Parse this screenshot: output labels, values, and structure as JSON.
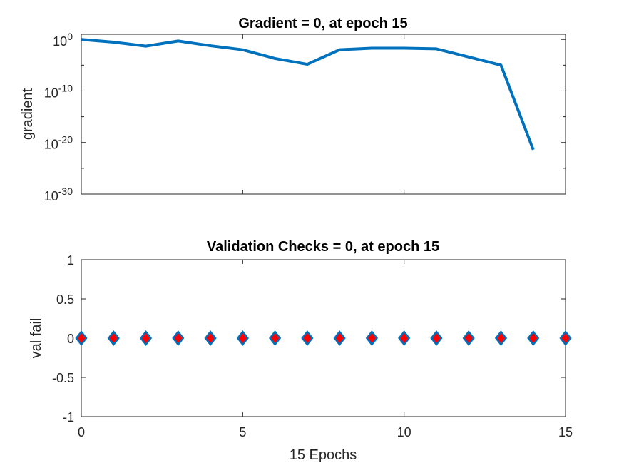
{
  "chart_data": [
    {
      "type": "line",
      "title": "Gradient = 0, at epoch 15",
      "xlabel": "",
      "ylabel": "gradient",
      "yscale": "log",
      "xlim": [
        0,
        15
      ],
      "ylim": [
        1e-30,
        10.0
      ],
      "x_ticks": [
        0,
        5,
        10,
        15
      ],
      "y_ticks": [
        {
          "base": "10",
          "exp": "0",
          "value": 1
        },
        {
          "base": "10",
          "exp": "-10",
          "value": 1e-10
        },
        {
          "base": "10",
          "exp": "-20",
          "value": 1e-20
        },
        {
          "base": "10",
          "exp": "-30",
          "value": 1e-30
        }
      ],
      "grid": false,
      "line_color": "#0072BD",
      "series": [
        {
          "x": [
            0,
            1,
            2,
            3,
            4,
            5,
            6,
            7,
            8,
            9,
            10,
            11,
            12,
            13,
            14
          ],
          "y": [
            1,
            0.3,
            0.05,
            0.5,
            0.06,
            0.01,
            0.0002,
            1.5e-05,
            0.01,
            0.02,
            0.02,
            0.015,
            0.0004,
            1e-05,
            4e-22
          ]
        }
      ]
    },
    {
      "type": "scatter",
      "title": "Validation Checks = 0, at epoch 15",
      "xlabel": "15 Epochs",
      "ylabel": "val fail",
      "xlim": [
        0,
        15
      ],
      "ylim": [
        -1,
        1
      ],
      "x_ticks": [
        0,
        5,
        10,
        15
      ],
      "y_ticks": [
        "1",
        "0.5",
        "0",
        "-0.5",
        "-1"
      ],
      "grid": false,
      "marker": "diamond",
      "marker_edge_color": "#0072BD",
      "marker_face_color": "#FF0000",
      "series": [
        {
          "x": [
            0,
            1,
            2,
            3,
            4,
            5,
            6,
            7,
            8,
            9,
            10,
            11,
            12,
            13,
            14,
            15
          ],
          "y": [
            0,
            0,
            0,
            0,
            0,
            0,
            0,
            0,
            0,
            0,
            0,
            0,
            0,
            0,
            0,
            0
          ]
        }
      ]
    }
  ]
}
